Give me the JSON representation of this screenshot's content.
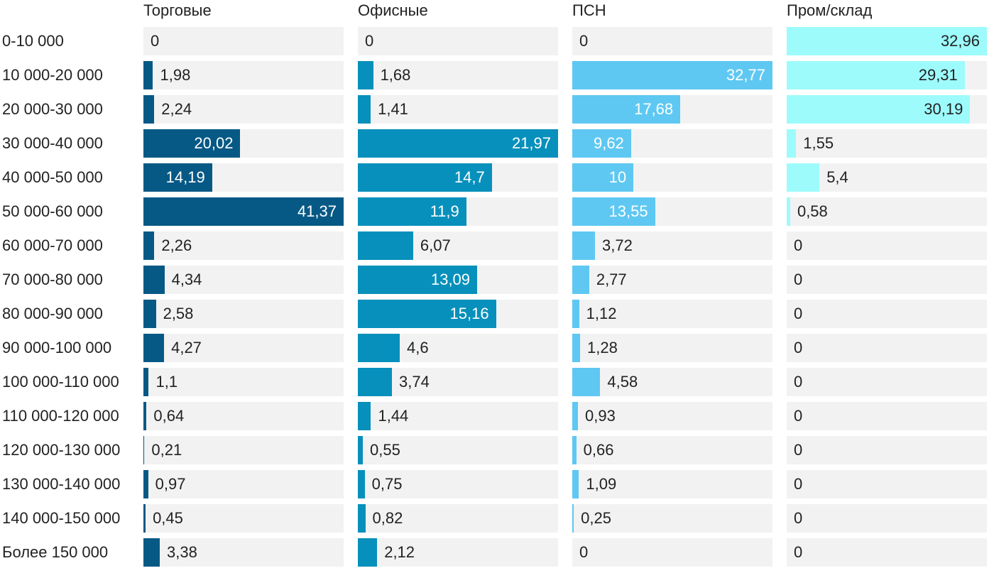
{
  "chart_data": {
    "type": "bar",
    "orientation": "horizontal",
    "layout": "small-multiples",
    "categories": [
      "0-10 000",
      "10 000-20 000",
      "20 000-30 000",
      "30 000-40 000",
      "40 000-50 000",
      "50 000-60 000",
      "60 000-70 000",
      "70 000-80 000",
      "80 000-90 000",
      "90 000-100 000",
      "100 000-110 000",
      "110 000-120 000",
      "120 000-130 000",
      "130 000-140 000",
      "140 000-150 000",
      "Более 150 000"
    ],
    "series": [
      {
        "name": "Торговые",
        "color": "#075985",
        "values": [
          0,
          1.98,
          2.24,
          20.02,
          14.19,
          41.37,
          2.26,
          4.34,
          2.58,
          4.27,
          1.1,
          0.64,
          0.21,
          0.97,
          0.45,
          3.38
        ],
        "labels": [
          "0",
          "1,98",
          "2,24",
          "20,02",
          "14,19",
          "41,37",
          "2,26",
          "4,34",
          "2,58",
          "4,27",
          "1,1",
          "0,64",
          "0,21",
          "0,97",
          "0,45",
          "3,38"
        ]
      },
      {
        "name": "Офисные",
        "color": "#0790bb",
        "values": [
          0,
          1.68,
          1.41,
          21.97,
          14.7,
          11.9,
          6.07,
          13.09,
          15.16,
          4.6,
          3.74,
          1.44,
          0.55,
          0.75,
          0.82,
          2.12
        ],
        "labels": [
          "0",
          "1,68",
          "1,41",
          "21,97",
          "14,7",
          "11,9",
          "6,07",
          "13,09",
          "15,16",
          "4,6",
          "3,74",
          "1,44",
          "0,55",
          "0,75",
          "0,82",
          "2,12"
        ]
      },
      {
        "name": "ПСН",
        "color": "#5ec8f2",
        "values": [
          0,
          32.77,
          17.68,
          9.62,
          10,
          13.55,
          3.72,
          2.77,
          1.12,
          1.28,
          4.58,
          0.93,
          0.66,
          1.09,
          0.25,
          0
        ],
        "labels": [
          "0",
          "32,77",
          "17,68",
          "9,62",
          "10",
          "13,55",
          "3,72",
          "2,77",
          "1,12",
          "1,28",
          "4,58",
          "0,93",
          "0,66",
          "1,09",
          "0,25",
          "0"
        ]
      },
      {
        "name": "Пром/склад",
        "color": "#9dfbfb",
        "values": [
          32.96,
          29.31,
          30.19,
          1.55,
          5.4,
          0.58,
          0,
          0,
          0,
          0,
          0,
          0,
          0,
          0,
          0,
          0
        ],
        "labels": [
          "32,96",
          "29,31",
          "30,19",
          "1,55",
          "5,4",
          "0,58",
          "0",
          "0",
          "0",
          "0",
          "0",
          "0",
          "0",
          "0",
          "0",
          "0"
        ]
      }
    ],
    "title": "",
    "xlabel": "",
    "ylabel": "",
    "grid": false,
    "legend": "none"
  }
}
